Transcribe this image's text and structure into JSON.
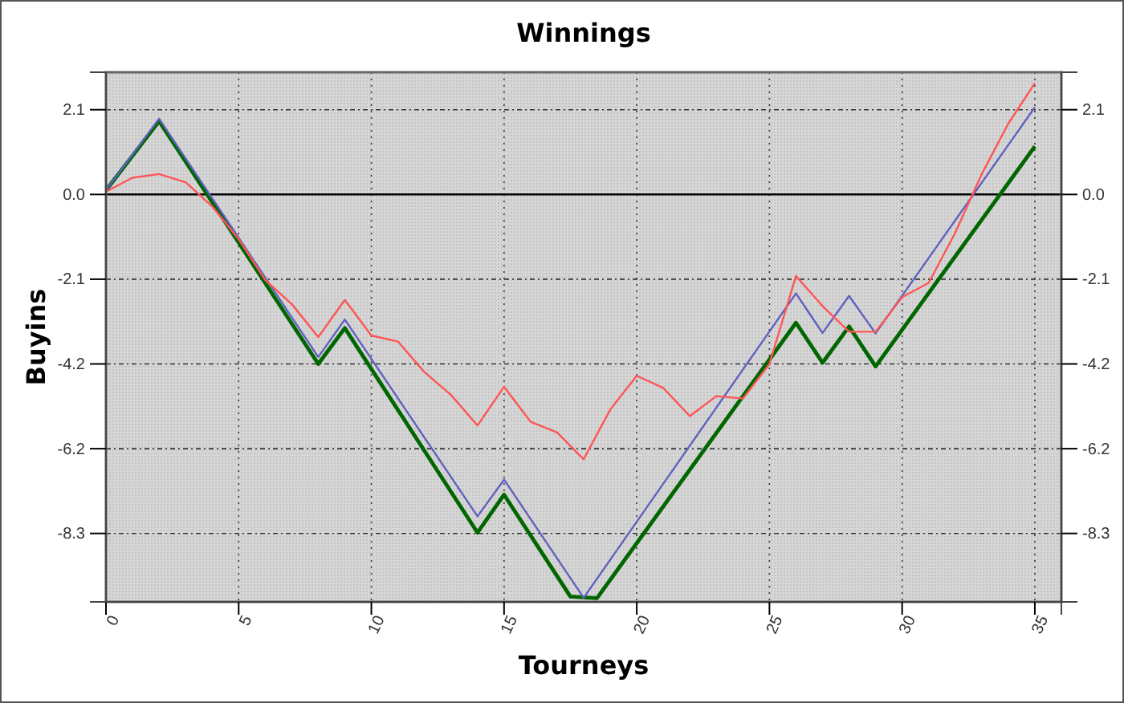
{
  "chart_data": {
    "type": "line",
    "title": "Winnings",
    "xlabel": "Tourneys",
    "ylabel": "Buyins",
    "xlim": [
      0,
      36
    ],
    "xticks": [
      0,
      5,
      10,
      15,
      20,
      25,
      30,
      35
    ],
    "ylim": [
      -10,
      3
    ],
    "yticks": [
      {
        "value": 2.08,
        "label": "2.1"
      },
      {
        "value": 0,
        "label": "0.0"
      },
      {
        "value": -2.08,
        "label": "-2.1"
      },
      {
        "value": -4.16,
        "label": "-4.2"
      },
      {
        "value": -6.24,
        "label": "-6.2"
      },
      {
        "value": -8.32,
        "label": "-8.3"
      }
    ],
    "y2lim": [
      -10,
      3
    ],
    "y2ticks": [
      {
        "value": 2.08,
        "label": "2.1"
      },
      {
        "value": 0,
        "label": "0.0"
      },
      {
        "value": -2.08,
        "label": "-2.1"
      },
      {
        "value": -4.16,
        "label": "-4.2"
      },
      {
        "value": -6.24,
        "label": "-6.2"
      },
      {
        "value": -8.32,
        "label": "-8.3"
      }
    ],
    "grid": true,
    "marker": "none",
    "line_style": "solid",
    "ref_lines": [
      {
        "axis": "y",
        "value": 0,
        "color": "#000000"
      }
    ],
    "series": [
      {
        "color": "#ff5555",
        "x": [
          0,
          1,
          2,
          3,
          4,
          5,
          6,
          7,
          8,
          9,
          10,
          11,
          12,
          13,
          14,
          15,
          16,
          17,
          18,
          19,
          20,
          21,
          22,
          23,
          24,
          25,
          26,
          27,
          28,
          29,
          30,
          31,
          32,
          33,
          34,
          35
        ],
        "values": [
          0.07,
          0.41,
          0.5,
          0.3,
          -0.29,
          -1.1,
          -2.1,
          -2.69,
          -3.5,
          -2.59,
          -3.46,
          -3.61,
          -4.36,
          -4.92,
          -5.67,
          -4.72,
          -5.58,
          -5.84,
          -6.5,
          -5.28,
          -4.45,
          -4.75,
          -5.44,
          -4.95,
          -5.01,
          -4.16,
          -2.0,
          -2.74,
          -3.37,
          -3.37,
          -2.52,
          -2.17,
          -0.94,
          0.5,
          1.74,
          2.73
        ]
      },
      {
        "color": "#6060c0",
        "x": [
          0,
          2,
          8,
          9,
          14,
          15,
          18,
          26,
          27,
          28,
          29,
          35
        ],
        "values": [
          0.1,
          1.86,
          -3.99,
          -3.07,
          -7.9,
          -7.0,
          -9.9,
          -2.43,
          -3.4,
          -2.49,
          -3.41,
          2.14
        ]
      },
      {
        "color": "#006600",
        "x": [
          0,
          2,
          8,
          9,
          14,
          15,
          17.5,
          18.5,
          26,
          27,
          28,
          29,
          35
        ],
        "values": [
          0.1,
          1.8,
          -4.16,
          -3.28,
          -8.3,
          -7.37,
          -9.87,
          -9.91,
          -3.15,
          -4.13,
          -3.24,
          -4.22,
          1.18
        ]
      }
    ]
  }
}
